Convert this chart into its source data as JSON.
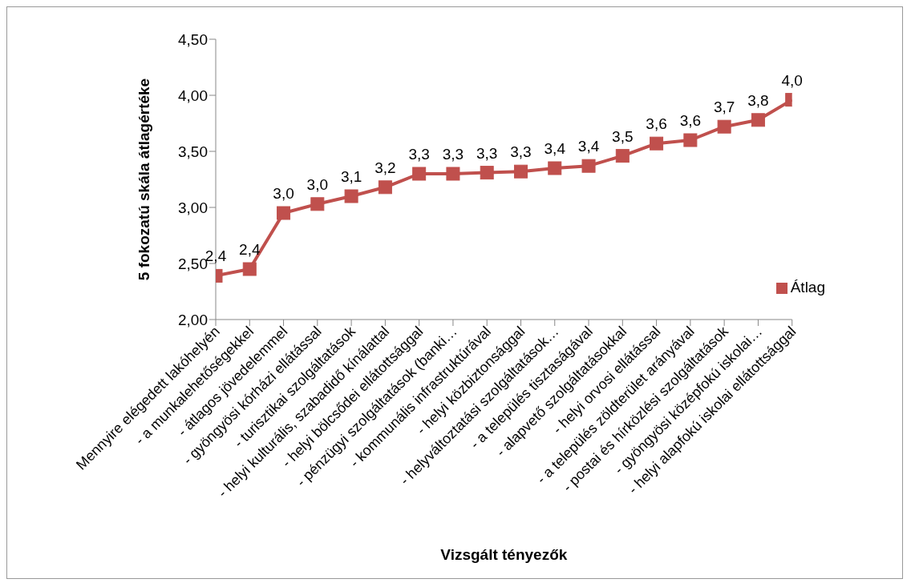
{
  "chart_data": {
    "type": "line",
    "xlabel": "Vizsgált tényezők",
    "ylabel": "5 fokozatú skála átlagértéke",
    "categories": [
      "Mennyire elégedett lakóhelyén",
      "- a munkalehetőségekkel",
      "- átlagos jövedelemmel",
      "- gyöngyösi kórházi ellátással",
      "- turisztikai szolgáltatások",
      "- helyi kulturális, szabadidő kínálattal",
      "- helyi bölcsődei ellátottsággal",
      "- pénzügyi szolgáltatások (banki…",
      "- kommunális infrastruktúrával",
      "- helyi közbiztonsággal",
      "- helyváltoztatási szolgáltatások…",
      "- a település tisztaságával",
      "- alapvető szolgáltatásokkal",
      "- helyi orvosi ellátással",
      "- a település zöldterület arányával",
      "- postai és hírközlési szolgáltatások",
      "- gyöngyösi középfokú iskolai…",
      "- helyi alapfokú iskolai ellátottsággal"
    ],
    "series": [
      {
        "name": "Átlag",
        "color": "#c0504d",
        "values": [
          2.39,
          2.45,
          2.95,
          3.03,
          3.1,
          3.18,
          3.3,
          3.3,
          3.31,
          3.32,
          3.35,
          3.37,
          3.46,
          3.57,
          3.6,
          3.72,
          3.78,
          3.96
        ],
        "value_labels": [
          "2,4",
          "2,4",
          "3,0",
          "3,0",
          "3,1",
          "3,2",
          "3,3",
          "3,3",
          "3,3",
          "3,3",
          "3,4",
          "3,4",
          "3,5",
          "3,6",
          "3,6",
          "3,7",
          "3,8",
          "4,0"
        ]
      }
    ],
    "ylim": [
      2,
      4.5
    ],
    "yticks": [
      {
        "value": 2,
        "label": "2,00"
      },
      {
        "value": 2.5,
        "label": "2,50"
      },
      {
        "value": 3,
        "label": "3,00"
      },
      {
        "value": 3.5,
        "label": "3,50"
      },
      {
        "value": 4,
        "label": "4,00"
      },
      {
        "value": 4.5,
        "label": "4,50"
      }
    ],
    "grid": false,
    "legend": "right",
    "marker": "square",
    "line_style": "solid"
  }
}
